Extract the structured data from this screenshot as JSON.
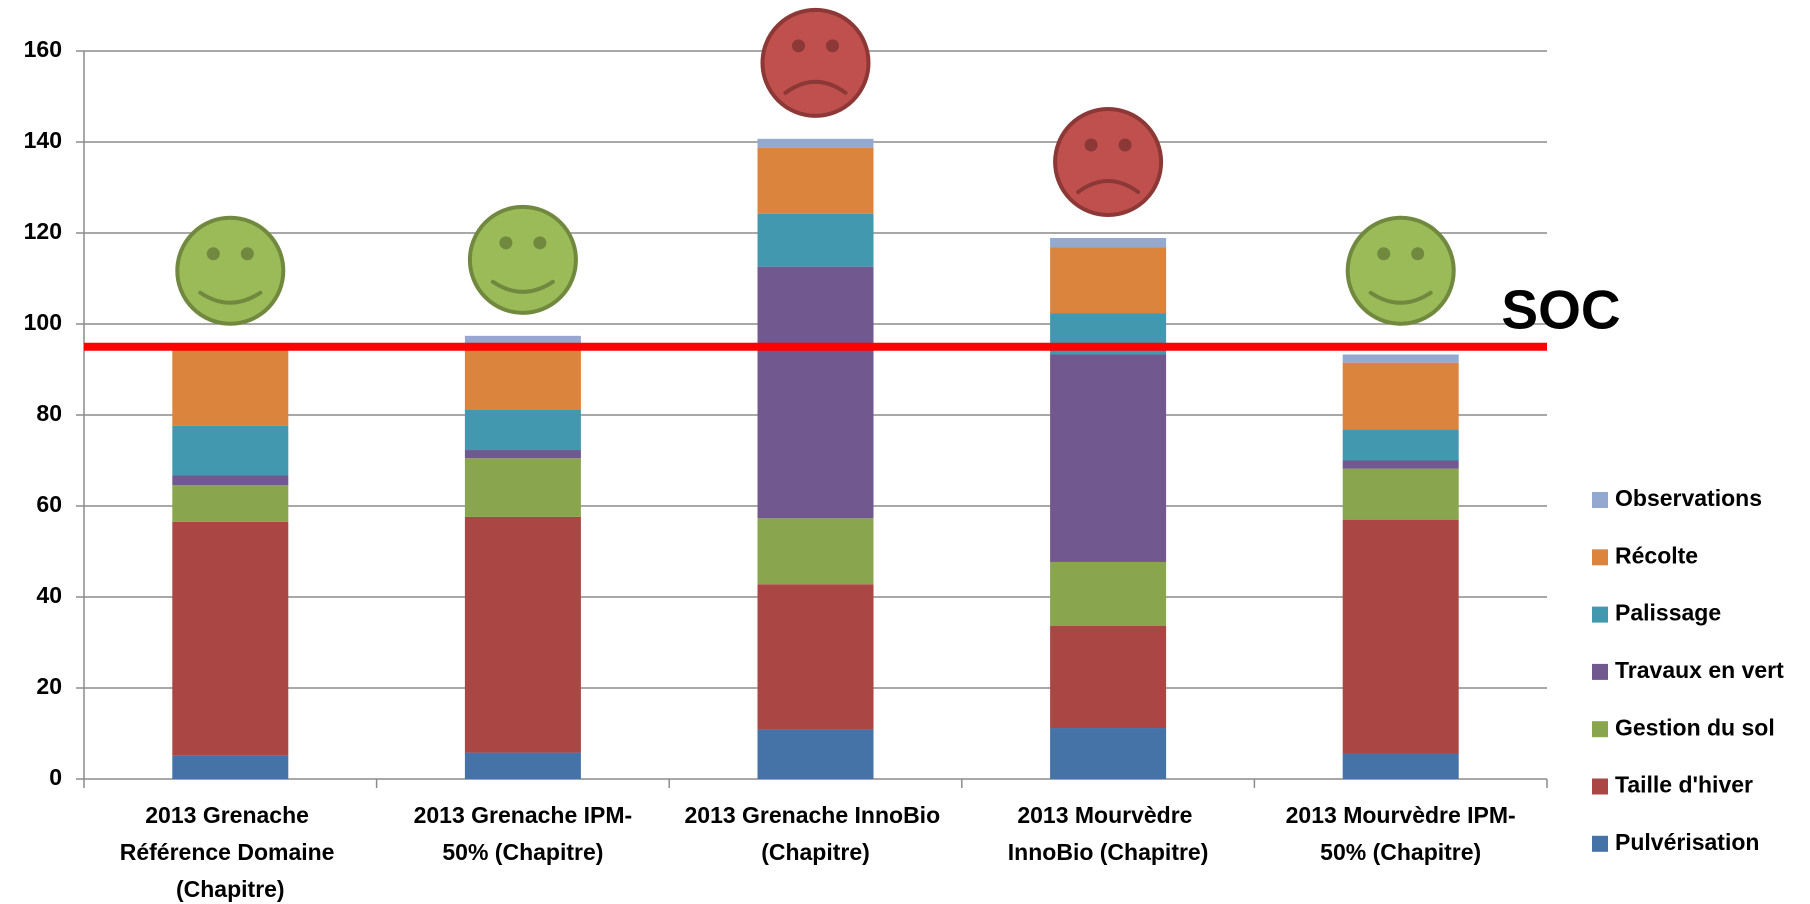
{
  "chart_data": {
    "type": "bar",
    "stacked": true,
    "categories": [
      "2013 Grenache Référence Domaine (Chapitre)",
      "2013 Grenache IPM-50% (Chapitre)",
      "2013 Grenache InnoBio (Chapitre)",
      "2013 Mourvèdre InnoBio (Chapitre)",
      "2013 Mourvèdre IPM-50% (Chapitre)"
    ],
    "series": [
      {
        "name": "Pulvérisation",
        "color": "#4572a7",
        "values": [
          5.1,
          5.8,
          10.9,
          11.2,
          5.6
        ]
      },
      {
        "name": "Taille d'hiver",
        "color": "#aa4643",
        "values": [
          51.4,
          51.8,
          31.9,
          22.5,
          51.4
        ]
      },
      {
        "name": "Gestion du sol",
        "color": "#89a54e",
        "values": [
          8.1,
          12.9,
          14.5,
          14.0,
          11.2
        ]
      },
      {
        "name": "Travaux en vert",
        "color": "#71588f",
        "values": [
          2.1,
          1.8,
          55.3,
          45.6,
          1.8
        ]
      },
      {
        "name": "Palissage",
        "color": "#4198af",
        "values": [
          10.9,
          8.8,
          11.6,
          9.1,
          6.8
        ]
      },
      {
        "name": "Récolte",
        "color": "#db843d",
        "values": [
          17.0,
          14.7,
          14.5,
          14.5,
          14.7
        ]
      },
      {
        "name": "Observations",
        "color": "#93a9cf",
        "values": [
          0,
          1.6,
          2.0,
          2.0,
          1.8
        ]
      }
    ],
    "ylim": [
      0,
      160
    ],
    "yticks": [
      0,
      20,
      40,
      60,
      80,
      100,
      120,
      140,
      160
    ],
    "grid": true,
    "legend": "right",
    "reference_line": {
      "label": "SOC",
      "value": 95,
      "color": "#ff0000"
    },
    "faces": [
      "happy",
      "happy",
      "sad",
      "sad",
      "happy"
    ]
  }
}
